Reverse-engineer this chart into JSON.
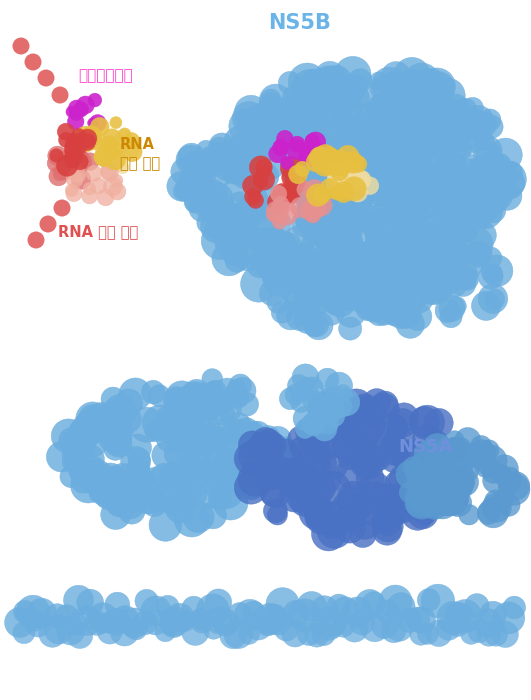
{
  "bg_color": "#ffffff",
  "ns5b_label": "NS5B",
  "ns5b_label_color": "#6ab4e8",
  "ns5a_label": "NS5A",
  "ns5a_label_color": "#7090dd",
  "sofosbuvir_label": "소포스부비르",
  "sofosbuvir_label_color": "#ff44cc",
  "rna_copy_label": "RNA\n복제 가닥",
  "rna_copy_label_color": "#cc8800",
  "rna_template_label": "RNA 주형 사슬",
  "rna_template_label_color": "#e05050",
  "light_blue": "#6aadde",
  "mid_blue": "#5a9ad0",
  "dark_blue": "#4a72c4",
  "yellow": "#e8c040",
  "light_yellow": "#f0dca0",
  "red": "#d84040",
  "pink": "#e89090",
  "magenta": "#cc22cc",
  "salmon": "#e07070",
  "light_salmon": "#f0b0a0",
  "dot_color": "#e05858"
}
